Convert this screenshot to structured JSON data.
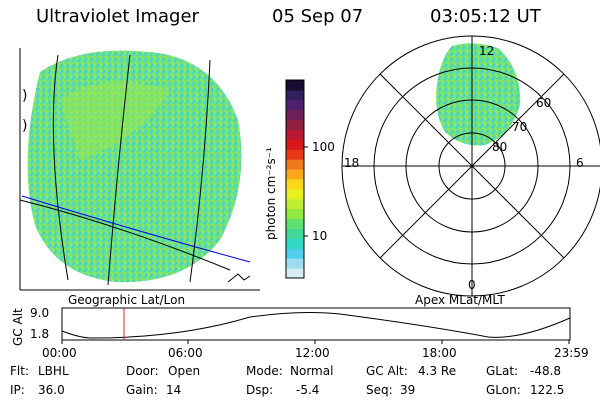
{
  "header": {
    "title": "Ultraviolet Imager",
    "date": "05 Sep 07",
    "time": "03:05:12 UT"
  },
  "left_panel": {
    "caption": "Geographic Lat/Lon",
    "edge_marks": [
      ")",
      ")"
    ]
  },
  "colorbar": {
    "label": "photon cm⁻²s⁻¹",
    "ticks": [
      {
        "label": "100",
        "value": 100
      },
      {
        "label": "10",
        "value": 10
      }
    ],
    "colors": [
      "#d8ecf4",
      "#9edcf0",
      "#4fd0f0",
      "#30d8c8",
      "#40d898",
      "#60e070",
      "#90e840",
      "#c0ec30",
      "#e8f020",
      "#f8d818",
      "#f8a818",
      "#f07818",
      "#e83818",
      "#d81818",
      "#b81830",
      "#902040",
      "#702058",
      "#502070",
      "#302060",
      "#180c30"
    ]
  },
  "polar_panel": {
    "caption": "Apex MLat/MLT",
    "lat_labels": [
      "60",
      "70",
      "80"
    ],
    "mlt_labels": {
      "top": "12",
      "left": "18",
      "right": "6",
      "bottom": "0"
    }
  },
  "altitude_plot": {
    "ylabel": "GC Alt",
    "yticks": [
      "9.0",
      "1.8"
    ],
    "xticks": [
      "00:00",
      "06:00",
      "12:00",
      "18:00",
      "23:59"
    ]
  },
  "info": {
    "row1": [
      {
        "key": "Flt:",
        "value": "LBHL"
      },
      {
        "key": "Door:",
        "value": "Open"
      },
      {
        "key": "Mode:",
        "value": "Normal"
      },
      {
        "key": "GC Alt:",
        "value": "4.3 Re"
      },
      {
        "key": "GLat:",
        "value": "-48.8"
      }
    ],
    "row2": [
      {
        "key": "IP:",
        "value": "36.0"
      },
      {
        "key": "Gain:",
        "value": "14"
      },
      {
        "key": "Dsp:",
        "value": "-5.4"
      },
      {
        "key": "Seq:",
        "value": "39"
      },
      {
        "key": "GLon:",
        "value": "122.5"
      }
    ]
  }
}
